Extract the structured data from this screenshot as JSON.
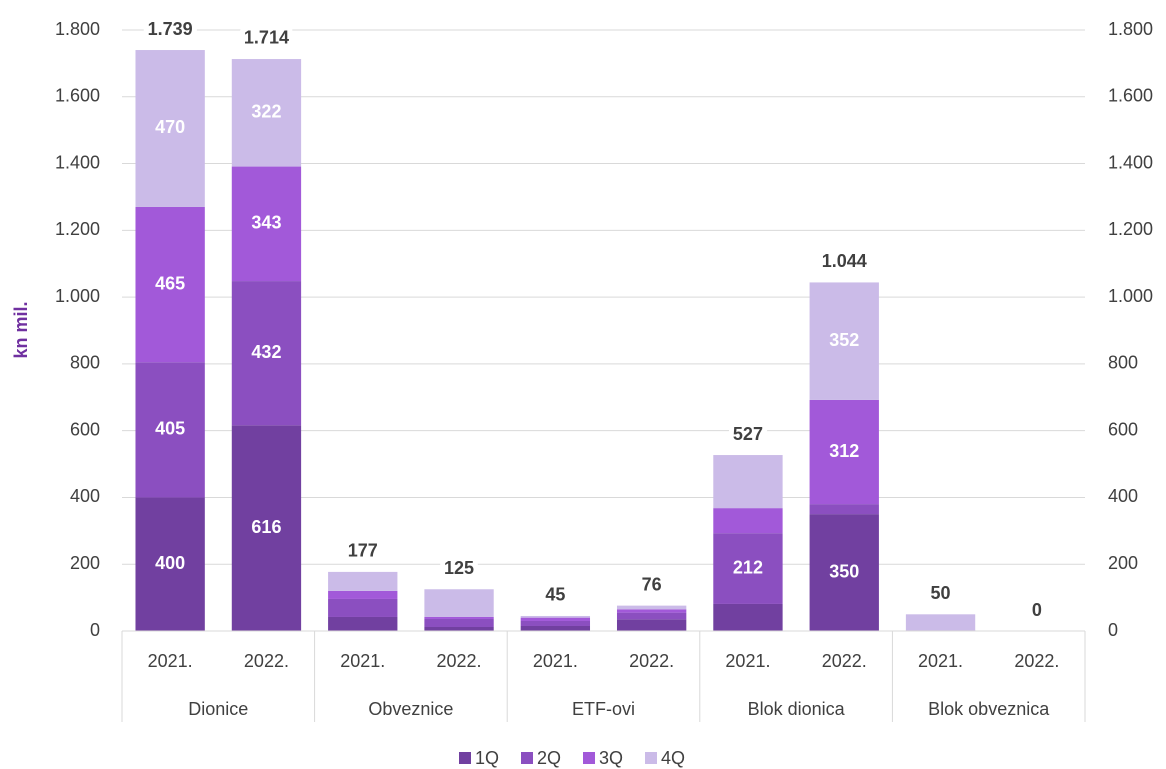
{
  "chart_data": {
    "type": "stacked_bar",
    "y_label": "kn mil.",
    "categories": [
      "2021.",
      "2022.",
      "2021.",
      "2022.",
      "2021.",
      "2022.",
      "2021.",
      "2022.",
      "2021.",
      "2022."
    ],
    "groups": [
      "Dionice",
      "Obveznice",
      "ETF-ovi",
      "Blok dionica",
      "Blok obveznica"
    ],
    "series": [
      {
        "name": "1Q",
        "color": "#7140a0",
        "values": [
          400,
          616,
          42,
          12,
          15,
          35,
          81,
          350,
          2,
          0
        ]
      },
      {
        "name": "2Q",
        "color": "#8b4fc0",
        "values": [
          405,
          432,
          54,
          24,
          15,
          20,
          212,
          30,
          0,
          0
        ]
      },
      {
        "name": "3Q",
        "color": "#a259d9",
        "values": [
          465,
          343,
          24,
          6,
          10,
          10,
          75,
          312,
          0,
          0
        ]
      },
      {
        "name": "4Q",
        "color": "#cbbbe8",
        "values": [
          470,
          322,
          57,
          83,
          5,
          11,
          159,
          352,
          48,
          0
        ]
      }
    ],
    "totals": {
      "values": [
        1739,
        1714,
        177,
        125,
        45,
        76,
        527,
        1044,
        50,
        0
      ],
      "value_labels": [
        "1.739",
        "1.714",
        "177",
        "125",
        "45",
        "76",
        "527",
        "1.044",
        "50",
        "0"
      ]
    },
    "ylim": [
      0,
      1800
    ],
    "yticks": [
      0,
      200,
      400,
      600,
      800,
      {
        "value": 1000,
        "label": "1.000"
      },
      {
        "value": 1200,
        "label": "1.200"
      },
      {
        "value": 1400,
        "label": "1.400"
      },
      {
        "value": 1600,
        "label": "1.600"
      },
      {
        "value": 1800,
        "label": "1.800"
      }
    ],
    "y2lim": [
      0,
      1800
    ],
    "y2ticks": [
      0,
      200,
      400,
      600,
      800,
      {
        "value": 1000,
        "label": "1.000"
      },
      {
        "value": 1200,
        "label": "1.200"
      },
      {
        "value": 1400,
        "label": "1.400"
      },
      {
        "value": 1600,
        "label": "1.600"
      },
      {
        "value": 1800,
        "label": "1.800"
      }
    ],
    "grid": true,
    "legend": "bottom"
  }
}
